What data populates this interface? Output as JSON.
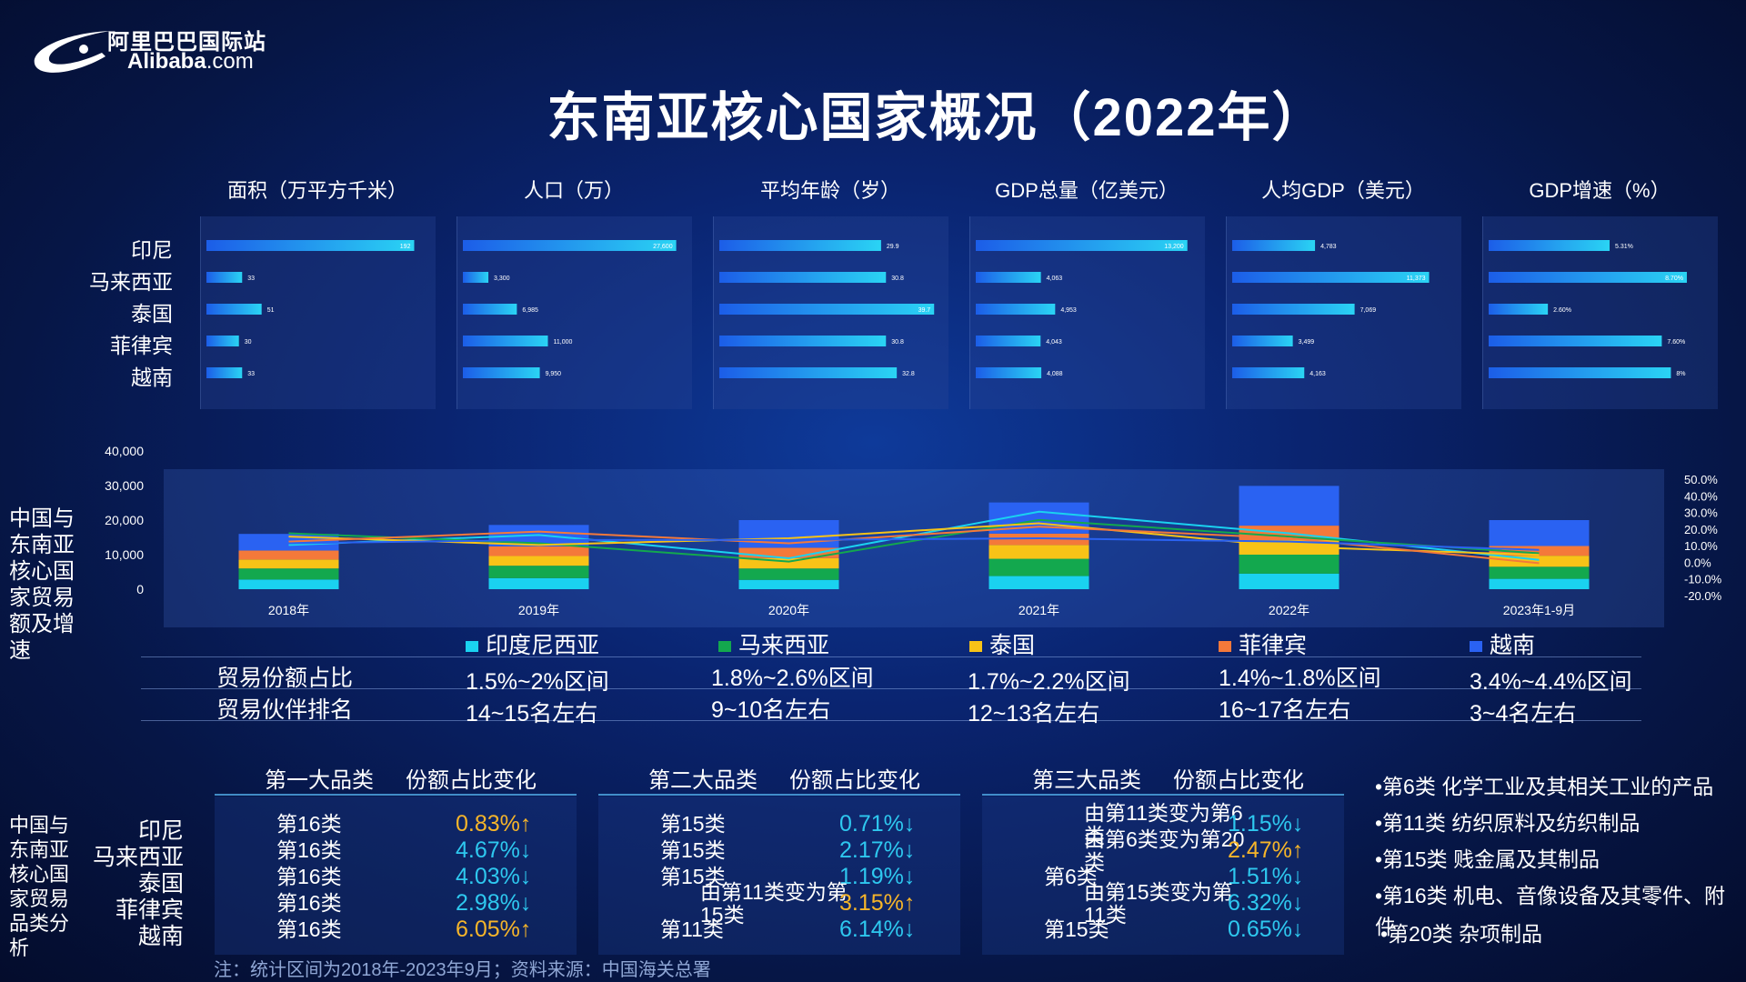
{
  "header": {
    "logo_cn": "阿里巴巴国际站",
    "logo_en_main": "Alibaba",
    "logo_en_suffix": ".com",
    "title": "东南亚核心国家概况（2022年）"
  },
  "countries": [
    "印尼",
    "马来西亚",
    "泰国",
    "菲律宾",
    "越南"
  ],
  "overview_metrics": [
    {
      "label": "面积（万平方千米）",
      "max": 200,
      "values": [
        192,
        33,
        51,
        30,
        33
      ],
      "value_labels": [
        "192",
        "33",
        "51",
        "30",
        "33"
      ]
    },
    {
      "label": "人口（万）",
      "max": 28000,
      "values": [
        27600,
        3300,
        6985,
        11000,
        9950
      ],
      "value_labels": [
        "27,600",
        "3,300",
        "6,985",
        "11,000",
        "9,950"
      ]
    },
    {
      "label": "平均年龄（岁）",
      "max": 40,
      "values": [
        29.9,
        30.8,
        39.7,
        30.8,
        32.8
      ],
      "value_labels": [
        "29.9",
        "30.8",
        "39.7",
        "30.8",
        "32.8"
      ]
    },
    {
      "label": "GDP总量（亿美元）",
      "max": 13500,
      "values": [
        13200,
        4063,
        4953,
        4043,
        4088
      ],
      "value_labels": [
        "13,200",
        "4,063",
        "4,953",
        "4,043",
        "4,088"
      ]
    },
    {
      "label": "人均GDP（美元）",
      "max": 12500,
      "values": [
        4783,
        11373,
        7069,
        3499,
        4163
      ],
      "value_labels": [
        "4,783",
        "11,373",
        "7,069",
        "3,499",
        "4,163"
      ]
    },
    {
      "label": "GDP增速（%）",
      "max": 9.5,
      "values": [
        5.31,
        8.7,
        2.6,
        7.6,
        8
      ],
      "value_labels": [
        "5.31%",
        "8.70%",
        "2.60%",
        "7.60%",
        "8%"
      ]
    }
  ],
  "trade_section": {
    "label": "中国与东南亚核心国家贸易额及增速"
  },
  "chart_data": {
    "type": "bar",
    "stacked": true,
    "categories": [
      "2018年",
      "2019年",
      "2020年",
      "2021年",
      "2022年",
      "2023年1-9月"
    ],
    "ylim": [
      0,
      40000
    ],
    "yticks": [
      "40,000",
      "30,000",
      "20,000",
      "10,000",
      "0"
    ],
    "ylim_right": [
      -20,
      50
    ],
    "yticks_right": [
      "50.0%",
      "40.0%",
      "30.0%",
      "20.0%",
      "10.0%",
      "0.0%",
      "-10.0%",
      "-20.0%"
    ],
    "series": [
      {
        "name": "印度尼西亚",
        "color": "#1ad2f0",
        "values": [
          2800,
          3200,
          2700,
          3800,
          4500,
          3000
        ],
        "growth": [
          11,
          17,
          3,
          31,
          18,
          2
        ]
      },
      {
        "name": "马来西亚",
        "color": "#13a84e",
        "values": [
          3200,
          3600,
          3300,
          5000,
          5500,
          3500
        ],
        "growth": [
          18,
          12,
          1,
          26,
          16,
          6
        ]
      },
      {
        "name": "泰国",
        "color": "#f8c317",
        "values": [
          2600,
          2800,
          3000,
          4000,
          4200,
          3200
        ],
        "growth": [
          16,
          11,
          15,
          24,
          10,
          5
        ]
      },
      {
        "name": "菲律宾",
        "color": "#f4793a",
        "values": [
          2600,
          2800,
          3000,
          3300,
          4200,
          2800
        ],
        "growth": [
          13,
          19,
          12,
          22,
          15,
          0
        ]
      },
      {
        "name": "越南",
        "color": "#2a62f2",
        "values": [
          4800,
          6200,
          8000,
          9000,
          11500,
          7500
        ],
        "growth": [
          12,
          14,
          14,
          15,
          13,
          8
        ]
      }
    ]
  },
  "trade_table": {
    "rows": [
      {
        "label": "贸易份额占比",
        "values": [
          "1.5%~2%区间",
          "1.8%~2.6%区间",
          "1.7%~2.2%区间",
          "1.4%~1.8%区间",
          "3.4%~4.4%区间"
        ]
      },
      {
        "label": "贸易伙伴排名",
        "values": [
          "14~15名左右",
          "9~10名左右",
          "12~13名左右",
          "16~17名左右",
          "3~4名左右"
        ]
      }
    ]
  },
  "category_section": {
    "label": "中国与东南亚核心国家贸易品类分析",
    "groups": [
      {
        "head_cat": "第一大品类",
        "head_change": "份额占比变化",
        "rows": [
          {
            "cat": "第16类",
            "pct": "0.83%↑",
            "dir": "up"
          },
          {
            "cat": "第16类",
            "pct": "4.67%↓",
            "dir": "down"
          },
          {
            "cat": "第16类",
            "pct": "4.03%↓",
            "dir": "down"
          },
          {
            "cat": "第16类",
            "pct": "2.98%↓",
            "dir": "down"
          },
          {
            "cat": "第16类",
            "pct": "6.05%↑",
            "dir": "up"
          }
        ]
      },
      {
        "head_cat": "第二大品类",
        "head_change": "份额占比变化",
        "rows": [
          {
            "cat": "第15类",
            "pct": "0.71%↓",
            "dir": "down"
          },
          {
            "cat": "第15类",
            "pct": "2.17%↓",
            "dir": "down"
          },
          {
            "cat": "第15类",
            "pct": "1.19%↓",
            "dir": "down"
          },
          {
            "cat": "由第11类变为第15类",
            "pct": "3.15%↑",
            "dir": "up"
          },
          {
            "cat": "第11类",
            "pct": "6.14%↓",
            "dir": "down"
          }
        ]
      },
      {
        "head_cat": "第三大品类",
        "head_change": "份额占比变化",
        "rows": [
          {
            "cat": "由第11类变为第6类",
            "pct": "1.15%↓",
            "dir": "down"
          },
          {
            "cat": "由第6类变为第20类",
            "pct": "2.47%↑",
            "dir": "up"
          },
          {
            "cat": "第6类",
            "pct": "1.51%↓",
            "dir": "down"
          },
          {
            "cat": "由第15类变为第11类",
            "pct": "6.32%↓",
            "dir": "down"
          },
          {
            "cat": "第15类",
            "pct": "0.65%↓",
            "dir": "down"
          }
        ]
      }
    ],
    "legend_items": [
      "•第6类 化学工业及其相关工业的产品",
      "•第11类 纺织原料及纺织制品",
      "•第15类 贱金属及其制品",
      "•第16类 机电、音像设备及其零件、附件",
      "•第20类 杂项制品"
    ]
  },
  "note": "注：统计区间为2018年-2023年9月；资料来源：中国海关总署",
  "colors": {
    "bar_gradient_start": "#1c5de8",
    "bar_gradient_end": "#2ad4f4",
    "up": "#f6b52a",
    "down": "#2ec8ef"
  }
}
